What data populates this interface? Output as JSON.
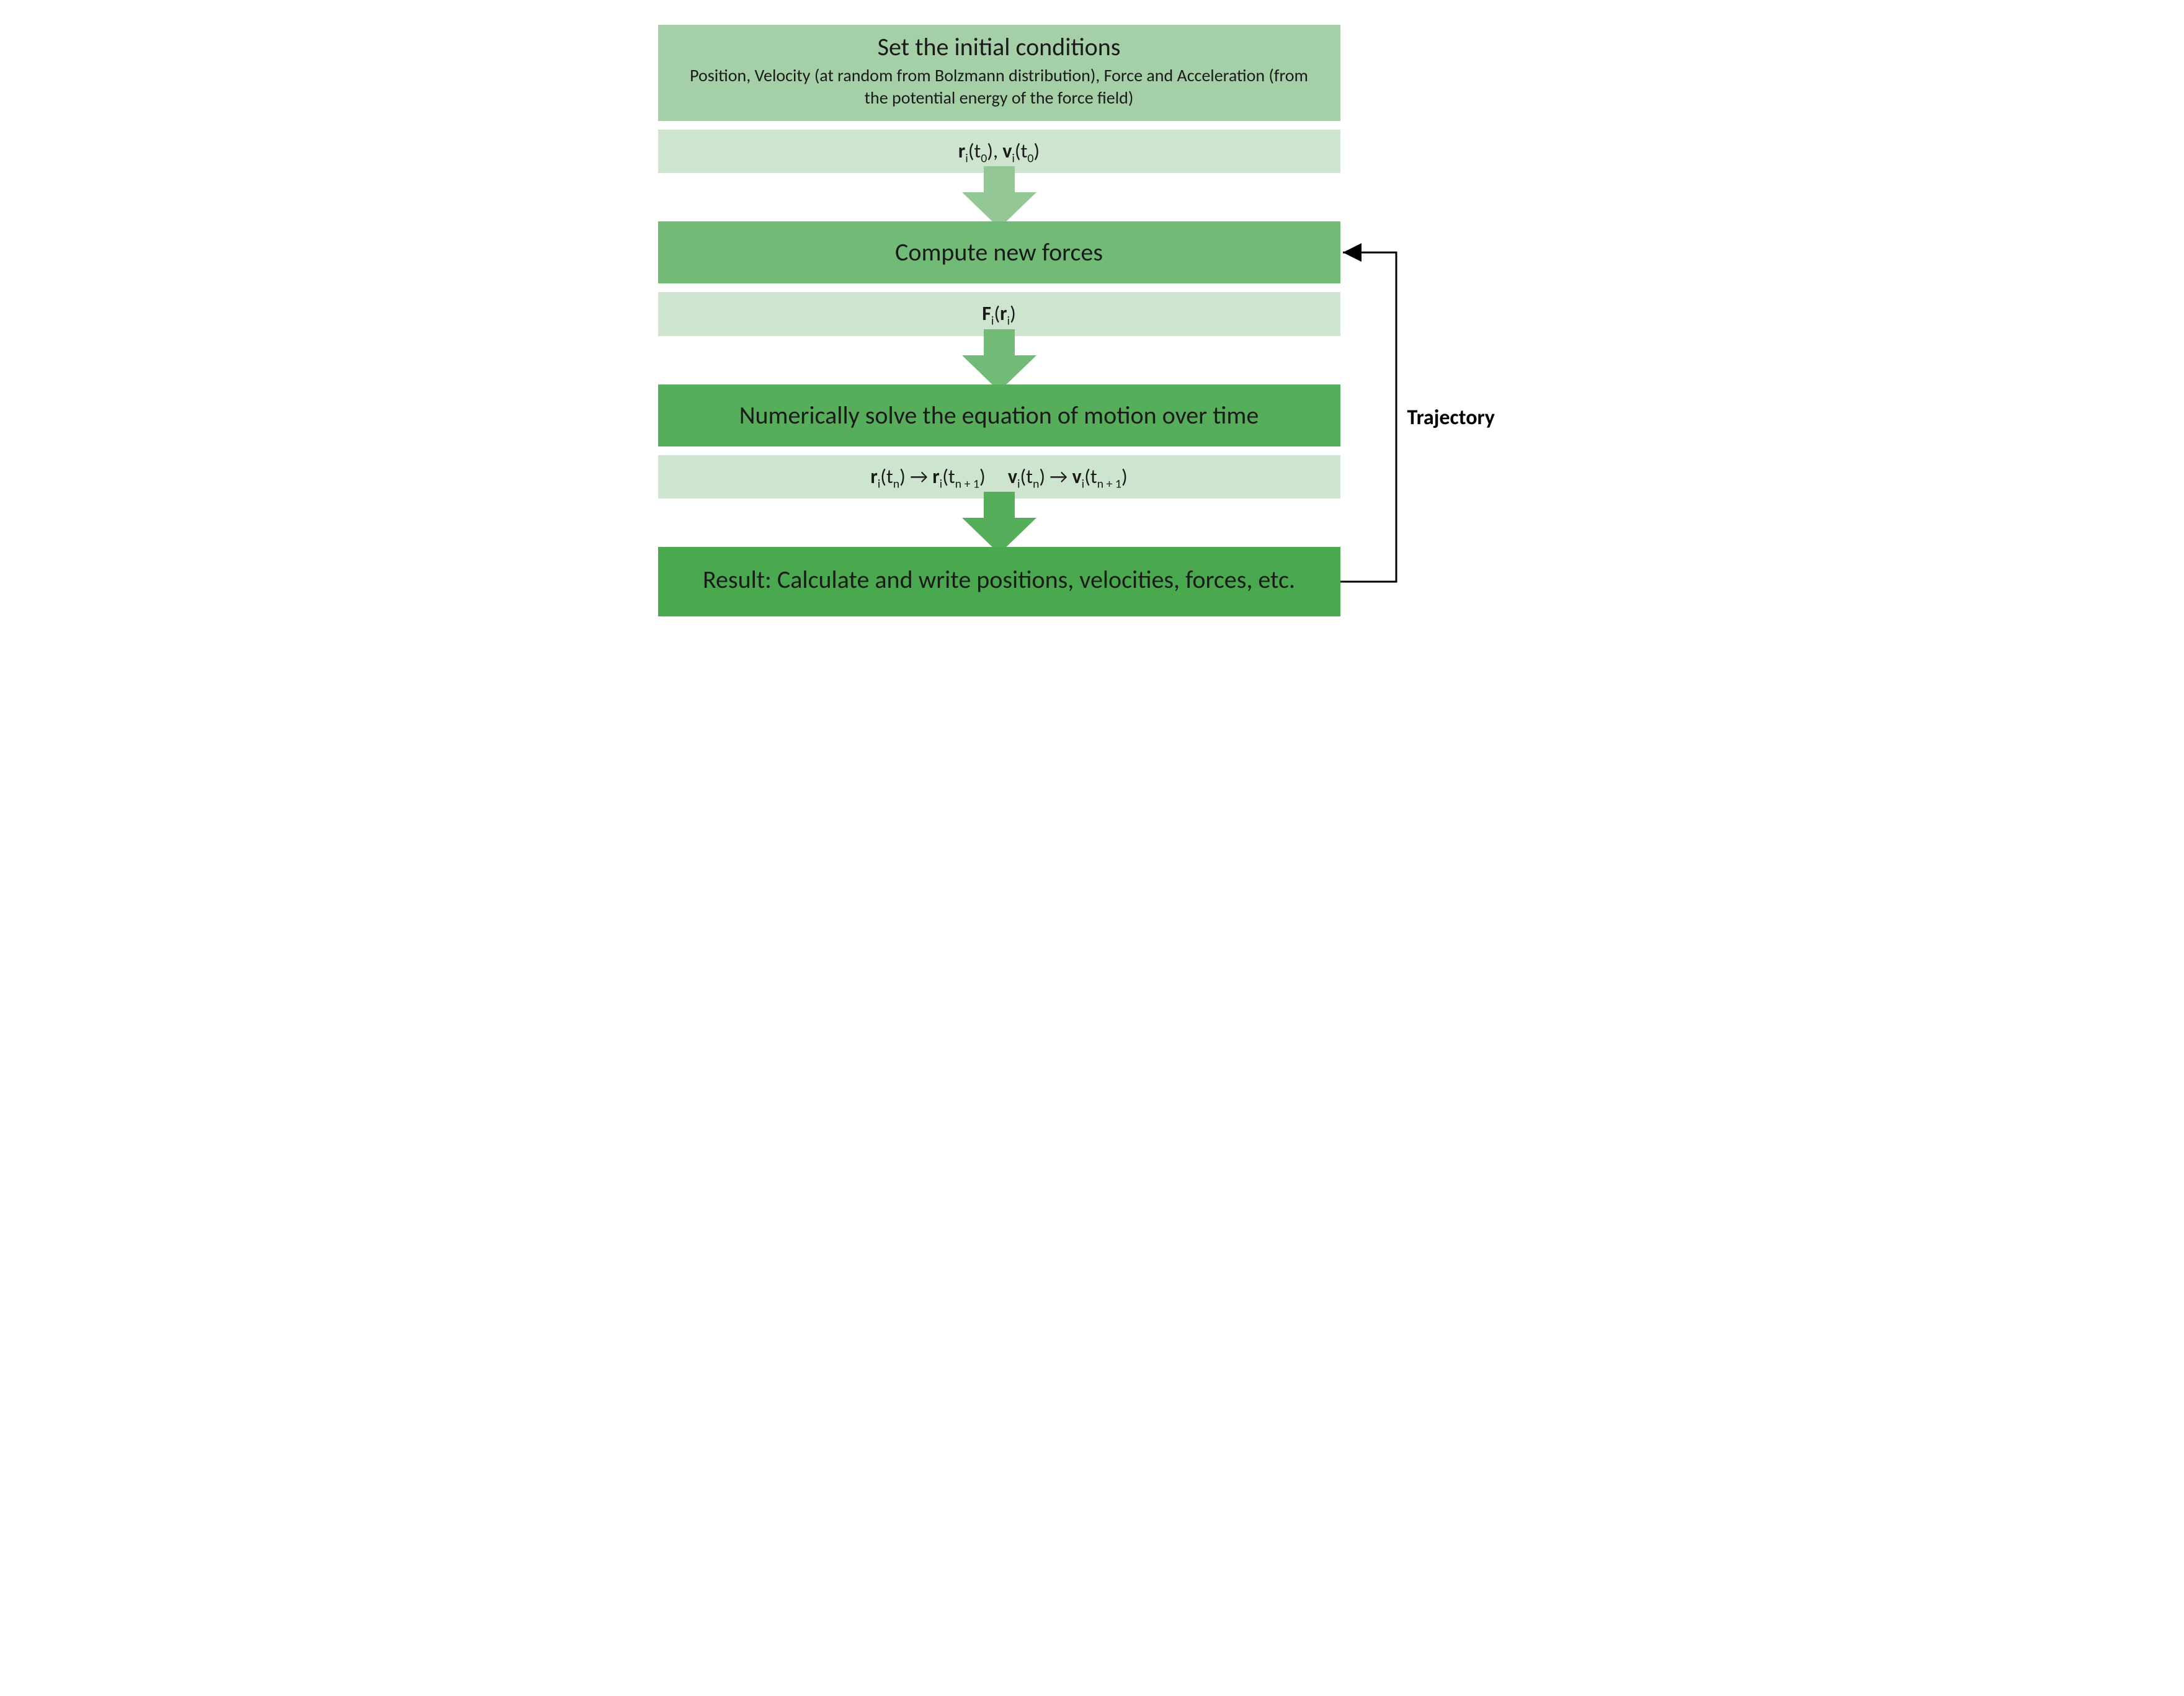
{
  "colors": {
    "box1_bg": "#a4cfa7",
    "box2_bg": "#cde4cf",
    "box3_bg": "#72bb77",
    "box4_bg": "#cde4cf",
    "box5_bg": "#56ae5a",
    "box6_bg": "#cde4cf",
    "box7_bg": "#4aa84e",
    "arrow1_fill": "#93c796",
    "arrow2_fill": "#72bb77",
    "arrow3_fill": "#56ae5a",
    "loop_arrow_stroke": "#000000",
    "text_color": "#1a1a1a",
    "fontsize_title": 40,
    "fontsize_sub": 28,
    "fontsize_step": 40,
    "fontsize_formula": 32,
    "fontsize_label": 34
  },
  "box1": {
    "title": "Set the initial conditions",
    "subtitle": "Position, Velocity (at random from Bolzmann distribution), Force and Acceleration (from the potential energy of the force field)"
  },
  "box2": {
    "r": "r",
    "ri": "i",
    "t0a": "(t",
    "t0b": "0",
    "sep": "), ",
    "v": "v",
    "vi": "i",
    "t0c": "(t",
    "t0d": "0",
    "end": ")"
  },
  "box3": {
    "title": "Compute new forces"
  },
  "box4": {
    "F": "F",
    "Fi": "i",
    "open": "(",
    "r": "r",
    "ri": "i",
    "close": ")"
  },
  "box5": {
    "title": "Numerically solve the equation of motion over time"
  },
  "box6": {
    "r1": "r",
    "ri1": "i",
    "tn1a": "(t",
    "tn1b": "n",
    "tn1c": ") ",
    "arrow1": "→ ",
    "r2": "r",
    "ri2": "i",
    "tn2a": "(t",
    "tn2b": "n + 1",
    "tn2c": ")",
    "spacer": "     ",
    "v1": "v",
    "vi1": "i",
    "tv1a": "(t",
    "tv1b": "n",
    "tv1c": ") ",
    "arrow2": "→ ",
    "v2": "v",
    "vi2": "i",
    "tv2a": "(t",
    "tv2b": "n + 1",
    "tv2c": ")"
  },
  "box7": {
    "title": "Result: Calculate and write positions, velocities, forces, etc."
  },
  "loop_label": "Trajectory",
  "type": "flowchart"
}
